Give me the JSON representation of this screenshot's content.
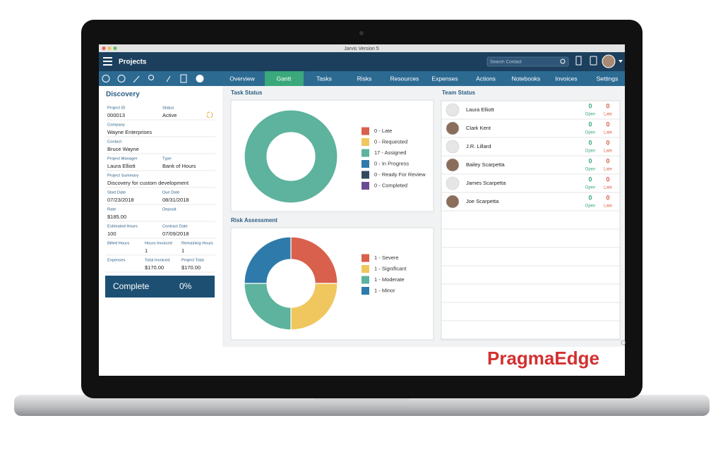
{
  "window_title": "Jarvis Version 5",
  "header": {
    "title": "Projects",
    "search_placeholder": "Search Contact"
  },
  "tabs": [
    "Overview",
    "Gantt",
    "Tasks",
    "Risks",
    "Resources",
    "Expenses",
    "Actions",
    "Notebooks",
    "Invoices",
    "Settings"
  ],
  "active_tab": 1,
  "project": {
    "title": "Discovery",
    "rows": [
      [
        {
          "label": "Project ID",
          "value": "000013"
        },
        {
          "label": "Status",
          "value": "Active"
        }
      ],
      [
        {
          "label": "Company",
          "value": "Wayne Enterprises"
        }
      ],
      [
        {
          "label": "Contact",
          "value": "Bruce Wayne"
        }
      ],
      [
        {
          "label": "Project Manager",
          "value": "Laura Elliott"
        },
        {
          "label": "Type",
          "value": "Bank of Hours"
        }
      ],
      [
        {
          "label": "Project Summary",
          "value": "Discovery for custom development"
        }
      ],
      [
        {
          "label": "Start Date",
          "value": "07/23/2018"
        },
        {
          "label": "Due Date",
          "value": "08/31/2018"
        }
      ],
      [
        {
          "label": "Rate",
          "value": "$185.00"
        },
        {
          "label": "Deposit"
        }
      ],
      [
        {
          "label": "Estimated Hours",
          "value": "100"
        },
        {
          "label": "Contract Date",
          "value": "07/09/2018"
        }
      ],
      [
        {
          "label": "Billed Hours"
        },
        {
          "label": "Hours Invoiced",
          "value": "1"
        },
        {
          "label": "Remaining Hours",
          "value": "1"
        }
      ],
      [
        {
          "label": "Expenses"
        },
        {
          "label": "Total Invoiced",
          "value": "$170.00"
        },
        {
          "label": "Project Total",
          "value": "$170.00"
        }
      ]
    ],
    "complete_label": "Complete",
    "complete_value": "0%"
  },
  "task_status": {
    "type": "donut",
    "title": "Task Status",
    "items": [
      {
        "label": "0 - Late",
        "value": 0,
        "color": "#d9604c"
      },
      {
        "label": "0 - Requested",
        "value": 0,
        "color": "#f0c75e"
      },
      {
        "label": "17 - Assigned",
        "value": 17,
        "color": "#5db39d"
      },
      {
        "label": "0 - In Progress",
        "value": 0,
        "color": "#2e7bab"
      },
      {
        "label": "0 - Ready For Review",
        "value": 0,
        "color": "#34495e"
      },
      {
        "label": "0 - Completed",
        "value": 0,
        "color": "#6a4c93"
      }
    ]
  },
  "risk_assessment": {
    "type": "donut",
    "title": "Risk Assessment",
    "items": [
      {
        "label": "1 - Severe",
        "value": 1,
        "color": "#d9604c"
      },
      {
        "label": "1 - Significant",
        "value": 1,
        "color": "#f0c75e"
      },
      {
        "label": "1 - Moderate",
        "value": 1,
        "color": "#5db39d"
      },
      {
        "label": "1 - Minor",
        "value": 1,
        "color": "#2e7bab"
      }
    ]
  },
  "team": {
    "title": "Team Status",
    "open_label": "Open",
    "late_label": "Late",
    "members": [
      {
        "name": "Laura Elliott",
        "open": 0,
        "late": 0
      },
      {
        "name": "Clark Kent",
        "open": 0,
        "late": 0
      },
      {
        "name": "J.R. Lillard",
        "open": 0,
        "late": 0
      },
      {
        "name": "Bailey Scarpetta",
        "open": 0,
        "late": 0
      },
      {
        "name": "James Scarpetta",
        "open": 0,
        "late": 0
      },
      {
        "name": "Joe Scarpetta",
        "open": 0,
        "late": 0
      }
    ]
  },
  "brand": "PragmaEdge"
}
